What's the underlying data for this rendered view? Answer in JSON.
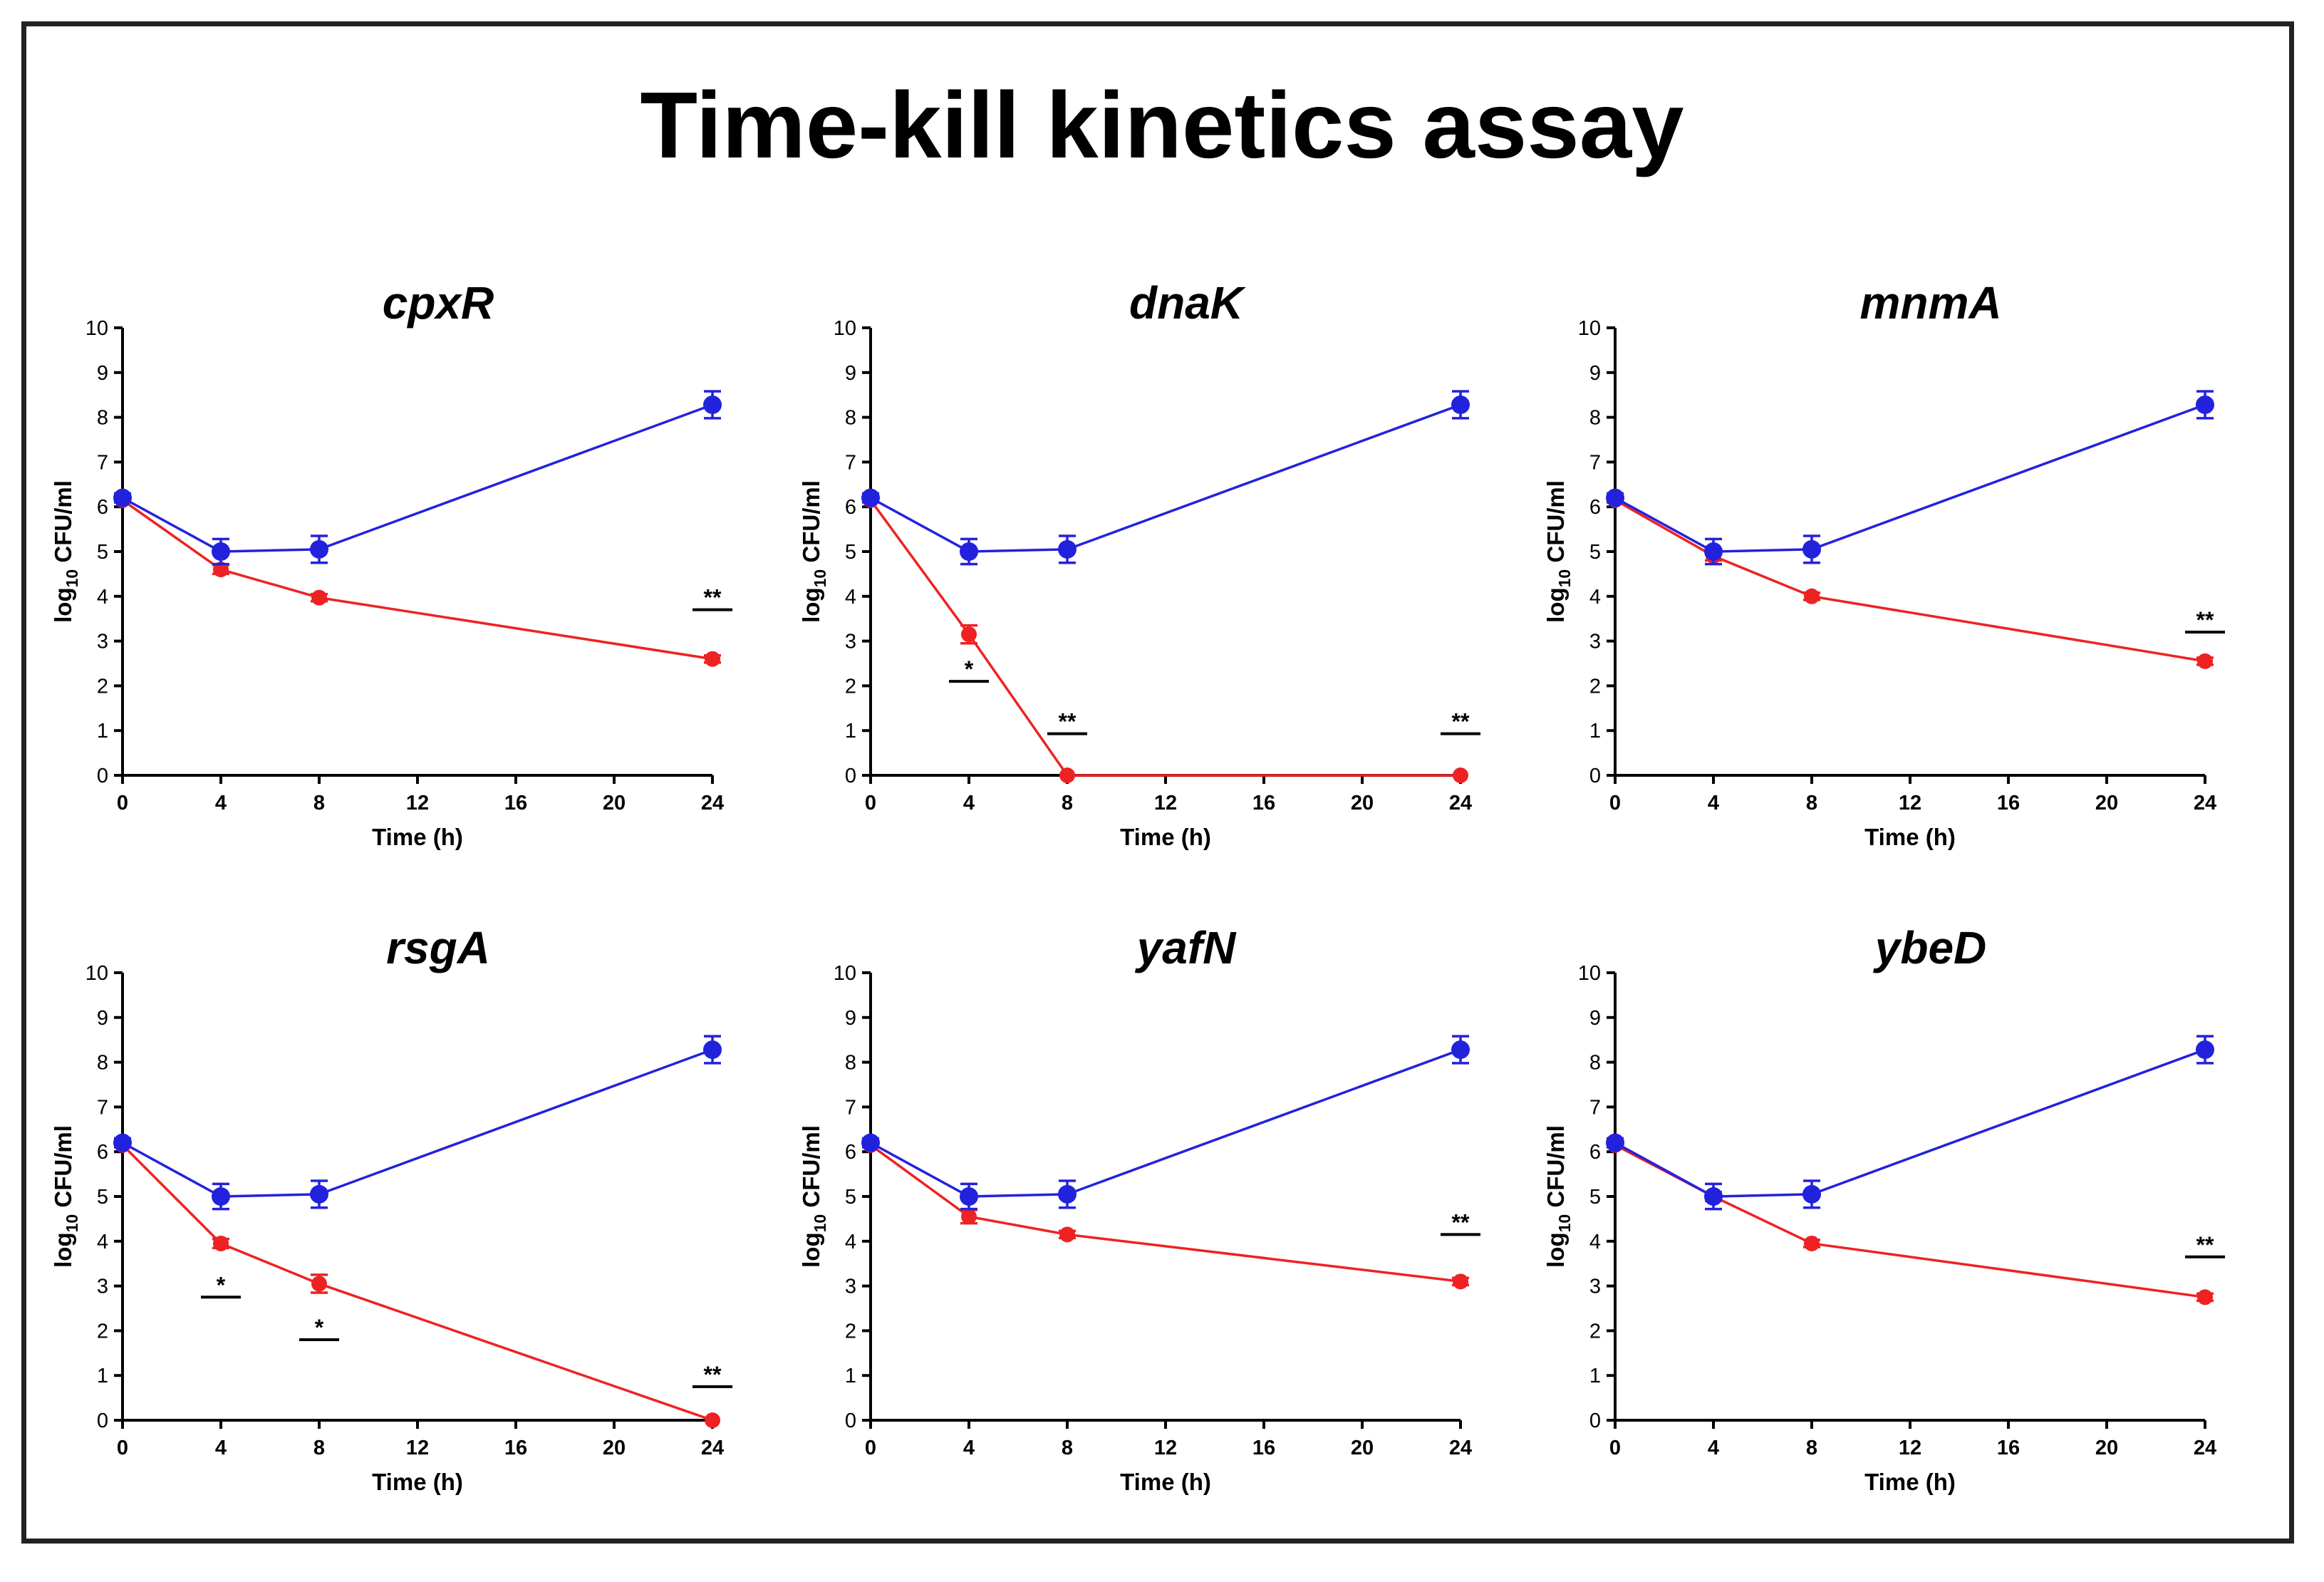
{
  "title": "Time-kill kinetics assay",
  "colors": {
    "series_blue": "#2222dd",
    "series_red": "#ee2222",
    "axis": "#000000"
  },
  "chart_data": [
    {
      "type": "line",
      "title": "cpxR",
      "xlabel": "Time (h)",
      "ylabel": "log10 CFU/ml",
      "ylabel_parts": {
        "prefix": "log",
        "subscript": "10",
        "suffix": " CFU/ml"
      },
      "xlim": [
        0,
        24
      ],
      "ylim": [
        0,
        10
      ],
      "xticks": [
        0,
        4,
        8,
        12,
        16,
        20,
        24
      ],
      "yticks": [
        0,
        1,
        2,
        3,
        4,
        5,
        6,
        7,
        8,
        9,
        10
      ],
      "x": [
        0,
        4,
        8,
        24
      ],
      "series": [
        {
          "name": "blue",
          "color": "#2222dd",
          "values": [
            6.2,
            5.0,
            5.05,
            8.28
          ],
          "errors": [
            0.1,
            0.28,
            0.3,
            0.3
          ]
        },
        {
          "name": "red",
          "color": "#ee2222",
          "values": [
            6.15,
            4.6,
            3.97,
            2.6
          ],
          "errors": [
            0.05,
            0.1,
            0.08,
            0.08
          ]
        }
      ],
      "annotations": [
        {
          "x": 24,
          "y": 3.7,
          "text": "**"
        }
      ]
    },
    {
      "type": "line",
      "title": "dnaK",
      "xlabel": "Time (h)",
      "ylabel": "log10 CFU/ml",
      "ylabel_parts": {
        "prefix": "log",
        "subscript": "10",
        "suffix": " CFU/ml"
      },
      "xlim": [
        0,
        24
      ],
      "ylim": [
        0,
        10
      ],
      "xticks": [
        0,
        4,
        8,
        12,
        16,
        20,
        24
      ],
      "yticks": [
        0,
        1,
        2,
        3,
        4,
        5,
        6,
        7,
        8,
        9,
        10
      ],
      "x": [
        0,
        4,
        8,
        24
      ],
      "series": [
        {
          "name": "blue",
          "color": "#2222dd",
          "values": [
            6.2,
            5.0,
            5.05,
            8.28
          ],
          "errors": [
            0.1,
            0.28,
            0.3,
            0.3
          ]
        },
        {
          "name": "red",
          "color": "#ee2222",
          "values": [
            6.15,
            3.15,
            0.0,
            0.0
          ],
          "errors": [
            0.05,
            0.2,
            0.03,
            0.03
          ]
        }
      ],
      "annotations": [
        {
          "x": 4,
          "y": 2.1,
          "text": "*"
        },
        {
          "x": 8,
          "y": 0.93,
          "text": "**"
        },
        {
          "x": 24,
          "y": 0.93,
          "text": "**"
        }
      ]
    },
    {
      "type": "line",
      "title": "mnmA",
      "xlabel": "Time (h)",
      "ylabel": "log10 CFU/ml",
      "ylabel_parts": {
        "prefix": "log",
        "subscript": "10",
        "suffix": " CFU/ml"
      },
      "xlim": [
        0,
        24
      ],
      "ylim": [
        0,
        10
      ],
      "xticks": [
        0,
        4,
        8,
        12,
        16,
        20,
        24
      ],
      "yticks": [
        0,
        1,
        2,
        3,
        4,
        5,
        6,
        7,
        8,
        9,
        10
      ],
      "x": [
        0,
        4,
        8,
        24
      ],
      "series": [
        {
          "name": "blue",
          "color": "#2222dd",
          "values": [
            6.2,
            5.0,
            5.05,
            8.28
          ],
          "errors": [
            0.1,
            0.28,
            0.3,
            0.3
          ]
        },
        {
          "name": "red",
          "color": "#ee2222",
          "values": [
            6.15,
            4.9,
            4.0,
            2.55
          ],
          "errors": [
            0.05,
            0.1,
            0.08,
            0.08
          ]
        }
      ],
      "annotations": [
        {
          "x": 24,
          "y": 3.2,
          "text": "**"
        }
      ]
    },
    {
      "type": "line",
      "title": "rsgA",
      "xlabel": "Time (h)",
      "ylabel": "log10 CFU/ml",
      "ylabel_parts": {
        "prefix": "log",
        "subscript": "10",
        "suffix": " CFU/ml"
      },
      "xlim": [
        0,
        24
      ],
      "ylim": [
        0,
        10
      ],
      "xticks": [
        0,
        4,
        8,
        12,
        16,
        20,
        24
      ],
      "yticks": [
        0,
        1,
        2,
        3,
        4,
        5,
        6,
        7,
        8,
        9,
        10
      ],
      "x": [
        0,
        4,
        8,
        24
      ],
      "series": [
        {
          "name": "blue",
          "color": "#2222dd",
          "values": [
            6.2,
            5.0,
            5.05,
            8.28
          ],
          "errors": [
            0.1,
            0.28,
            0.3,
            0.3
          ]
        },
        {
          "name": "red",
          "color": "#ee2222",
          "values": [
            6.15,
            3.95,
            3.05,
            0.0
          ],
          "errors": [
            0.05,
            0.1,
            0.2,
            0.03
          ]
        }
      ],
      "annotations": [
        {
          "x": 4,
          "y": 2.75,
          "text": "*"
        },
        {
          "x": 8,
          "y": 1.8,
          "text": "*"
        },
        {
          "x": 24,
          "y": 0.75,
          "text": "**"
        }
      ]
    },
    {
      "type": "line",
      "title": "yafN",
      "xlabel": "Time (h)",
      "ylabel": "log10 CFU/ml",
      "ylabel_parts": {
        "prefix": "log",
        "subscript": "10",
        "suffix": " CFU/ml"
      },
      "xlim": [
        0,
        24
      ],
      "ylim": [
        0,
        10
      ],
      "xticks": [
        0,
        4,
        8,
        12,
        16,
        20,
        24
      ],
      "yticks": [
        0,
        1,
        2,
        3,
        4,
        5,
        6,
        7,
        8,
        9,
        10
      ],
      "x": [
        0,
        4,
        8,
        24
      ],
      "series": [
        {
          "name": "blue",
          "color": "#2222dd",
          "values": [
            6.2,
            5.0,
            5.05,
            8.28
          ],
          "errors": [
            0.1,
            0.28,
            0.3,
            0.3
          ]
        },
        {
          "name": "red",
          "color": "#ee2222",
          "values": [
            6.15,
            4.55,
            4.15,
            3.1
          ],
          "errors": [
            0.05,
            0.15,
            0.08,
            0.08
          ]
        }
      ],
      "annotations": [
        {
          "x": 24,
          "y": 4.15,
          "text": "**"
        }
      ]
    },
    {
      "type": "line",
      "title": "ybeD",
      "xlabel": "Time (h)",
      "ylabel": "log10 CFU/ml",
      "ylabel_parts": {
        "prefix": "log",
        "subscript": "10",
        "suffix": " CFU/ml"
      },
      "xlim": [
        0,
        24
      ],
      "ylim": [
        0,
        10
      ],
      "xticks": [
        0,
        4,
        8,
        12,
        16,
        20,
        24
      ],
      "yticks": [
        0,
        1,
        2,
        3,
        4,
        5,
        6,
        7,
        8,
        9,
        10
      ],
      "x": [
        0,
        4,
        8,
        24
      ],
      "series": [
        {
          "name": "blue",
          "color": "#2222dd",
          "values": [
            6.2,
            5.0,
            5.05,
            8.28
          ],
          "errors": [
            0.1,
            0.28,
            0.3,
            0.3
          ]
        },
        {
          "name": "red",
          "color": "#ee2222",
          "values": [
            6.15,
            5.0,
            3.95,
            2.75
          ],
          "errors": [
            0.05,
            0.1,
            0.08,
            0.08
          ]
        }
      ],
      "annotations": [
        {
          "x": 24,
          "y": 3.65,
          "text": "**"
        }
      ]
    }
  ]
}
